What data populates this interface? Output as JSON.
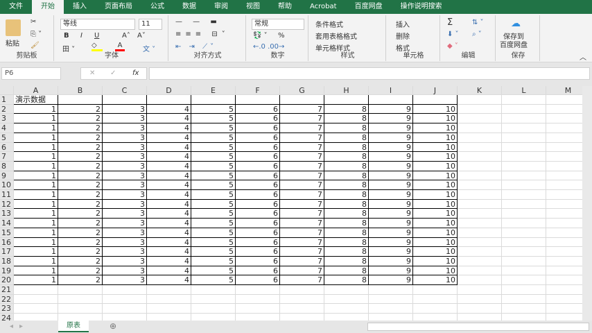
{
  "ribbon_tabs": [
    "文件",
    "开始",
    "插入",
    "页面布局",
    "公式",
    "数据",
    "审阅",
    "视图",
    "帮助",
    "Acrobat",
    "百度网盘",
    "操作说明搜索"
  ],
  "active_tab": 1,
  "clipboard": {
    "paste": "粘贴",
    "label": "剪贴板"
  },
  "font": {
    "name": "等线",
    "size": "11",
    "bold": "B",
    "italic": "I",
    "underline": "U",
    "label": "字体",
    "fill_color": "#ffff00",
    "font_color": "#ff0000"
  },
  "alignment": {
    "label": "对齐方式"
  },
  "number": {
    "format": "常规",
    "percent": "%",
    "label": "数字"
  },
  "styles": {
    "items": [
      "条件格式",
      "套用表格格式",
      "单元格样式"
    ],
    "label": "样式"
  },
  "cells": {
    "items": [
      "插入",
      "删除",
      "格式"
    ],
    "label": "单元格"
  },
  "editing": {
    "sum": "Σ",
    "label": "编辑"
  },
  "save": {
    "button": "保存到\n百度网盘",
    "label": "保存"
  },
  "formula_bar": {
    "name_box": "P6",
    "fx": "fx",
    "value": ""
  },
  "columns": [
    "A",
    "B",
    "C",
    "D",
    "E",
    "F",
    "G",
    "H",
    "I",
    "J",
    "K",
    "L",
    "M"
  ],
  "row_count": 24,
  "sheet": {
    "title": "演示数据",
    "rows": [
      [
        1,
        2,
        3,
        4,
        5,
        6,
        7,
        8,
        9,
        10
      ],
      [
        1,
        2,
        3,
        4,
        5,
        6,
        7,
        8,
        9,
        10
      ],
      [
        1,
        2,
        3,
        4,
        5,
        6,
        7,
        8,
        9,
        10
      ],
      [
        1,
        2,
        3,
        4,
        5,
        6,
        7,
        8,
        9,
        10
      ],
      [
        1,
        2,
        3,
        4,
        5,
        6,
        7,
        8,
        9,
        10
      ],
      [
        1,
        2,
        3,
        4,
        5,
        6,
        7,
        8,
        9,
        10
      ],
      [
        1,
        2,
        3,
        4,
        5,
        6,
        7,
        8,
        9,
        10
      ],
      [
        1,
        2,
        3,
        4,
        5,
        6,
        7,
        8,
        9,
        10
      ],
      [
        1,
        2,
        3,
        4,
        5,
        6,
        7,
        8,
        9,
        10
      ],
      [
        1,
        2,
        3,
        4,
        5,
        6,
        7,
        8,
        9,
        10
      ],
      [
        1,
        2,
        3,
        4,
        5,
        6,
        7,
        8,
        9,
        10
      ],
      [
        1,
        2,
        3,
        4,
        5,
        6,
        7,
        8,
        9,
        10
      ],
      [
        1,
        2,
        3,
        4,
        5,
        6,
        7,
        8,
        9,
        10
      ],
      [
        1,
        2,
        3,
        4,
        5,
        6,
        7,
        8,
        9,
        10
      ],
      [
        1,
        2,
        3,
        4,
        5,
        6,
        7,
        8,
        9,
        10
      ],
      [
        1,
        2,
        3,
        4,
        5,
        6,
        7,
        8,
        9,
        10
      ],
      [
        1,
        2,
        3,
        4,
        5,
        6,
        7,
        8,
        9,
        10
      ],
      [
        1,
        2,
        3,
        4,
        5,
        6,
        7,
        8,
        9,
        10
      ],
      [
        1,
        2,
        3,
        4,
        5,
        6,
        7,
        8,
        9,
        10
      ]
    ]
  },
  "sheet_tabs": [
    "原表"
  ],
  "add_sheet": "⊕"
}
